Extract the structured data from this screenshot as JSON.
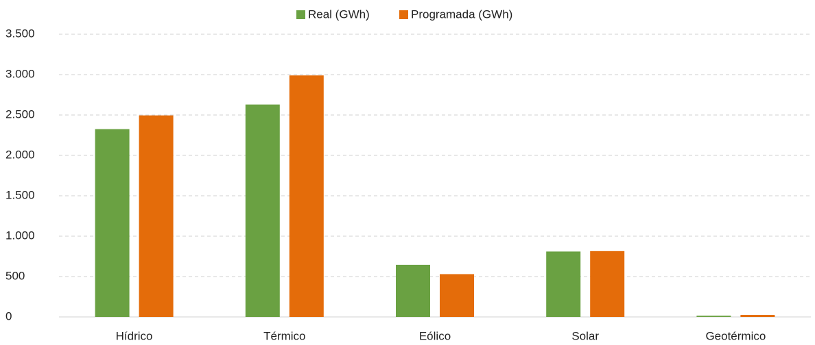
{
  "chart_data": {
    "type": "bar",
    "categories": [
      "Hídrico",
      "Térmico",
      "Eólico",
      "Solar",
      "Geotérmico"
    ],
    "series": [
      {
        "name": "Real (GWh)",
        "color": "#6aa142",
        "values": [
          2325,
          2630,
          645,
          810,
          15
        ]
      },
      {
        "name": "Programada (GWh)",
        "color": "#e46c0a",
        "values": [
          2495,
          2990,
          530,
          815,
          25
        ]
      }
    ],
    "ylim": [
      0,
      3500
    ],
    "yticks": [
      0,
      500,
      {
        "value": 1000,
        "label": "1.000"
      },
      {
        "value": 1500,
        "label": "1.500"
      },
      {
        "value": 2000,
        "label": "2.000"
      },
      {
        "value": 2500,
        "label": "2.500"
      },
      {
        "value": 3000,
        "label": "3.000"
      },
      {
        "value": 3500,
        "label": "3.500"
      }
    ],
    "grid": true
  }
}
